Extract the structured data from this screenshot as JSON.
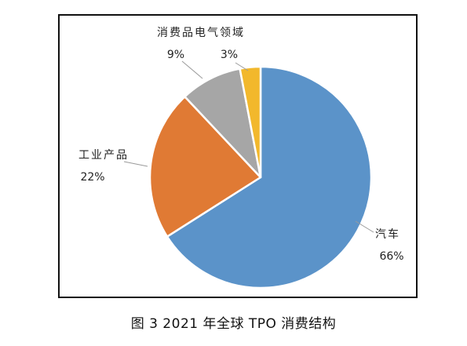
{
  "caption": "图 3  2021 年全球 TPO 消费结构",
  "chart_data": {
    "type": "pie",
    "title": "",
    "slices": [
      {
        "label": "汽车",
        "value": 66,
        "value_label": "66%",
        "color": "#5b93c9"
      },
      {
        "label": "工业产品",
        "value": 22,
        "value_label": "22%",
        "color": "#e07a34"
      },
      {
        "label": "消费品电气领域",
        "value": 9,
        "value_label": "9%",
        "color": "#a6a6a6"
      },
      {
        "label": "",
        "value": 3,
        "value_label": "3%",
        "color": "#f2b82c"
      }
    ],
    "start_direction": "top",
    "slice_order": "clockwise",
    "legend": "none"
  }
}
